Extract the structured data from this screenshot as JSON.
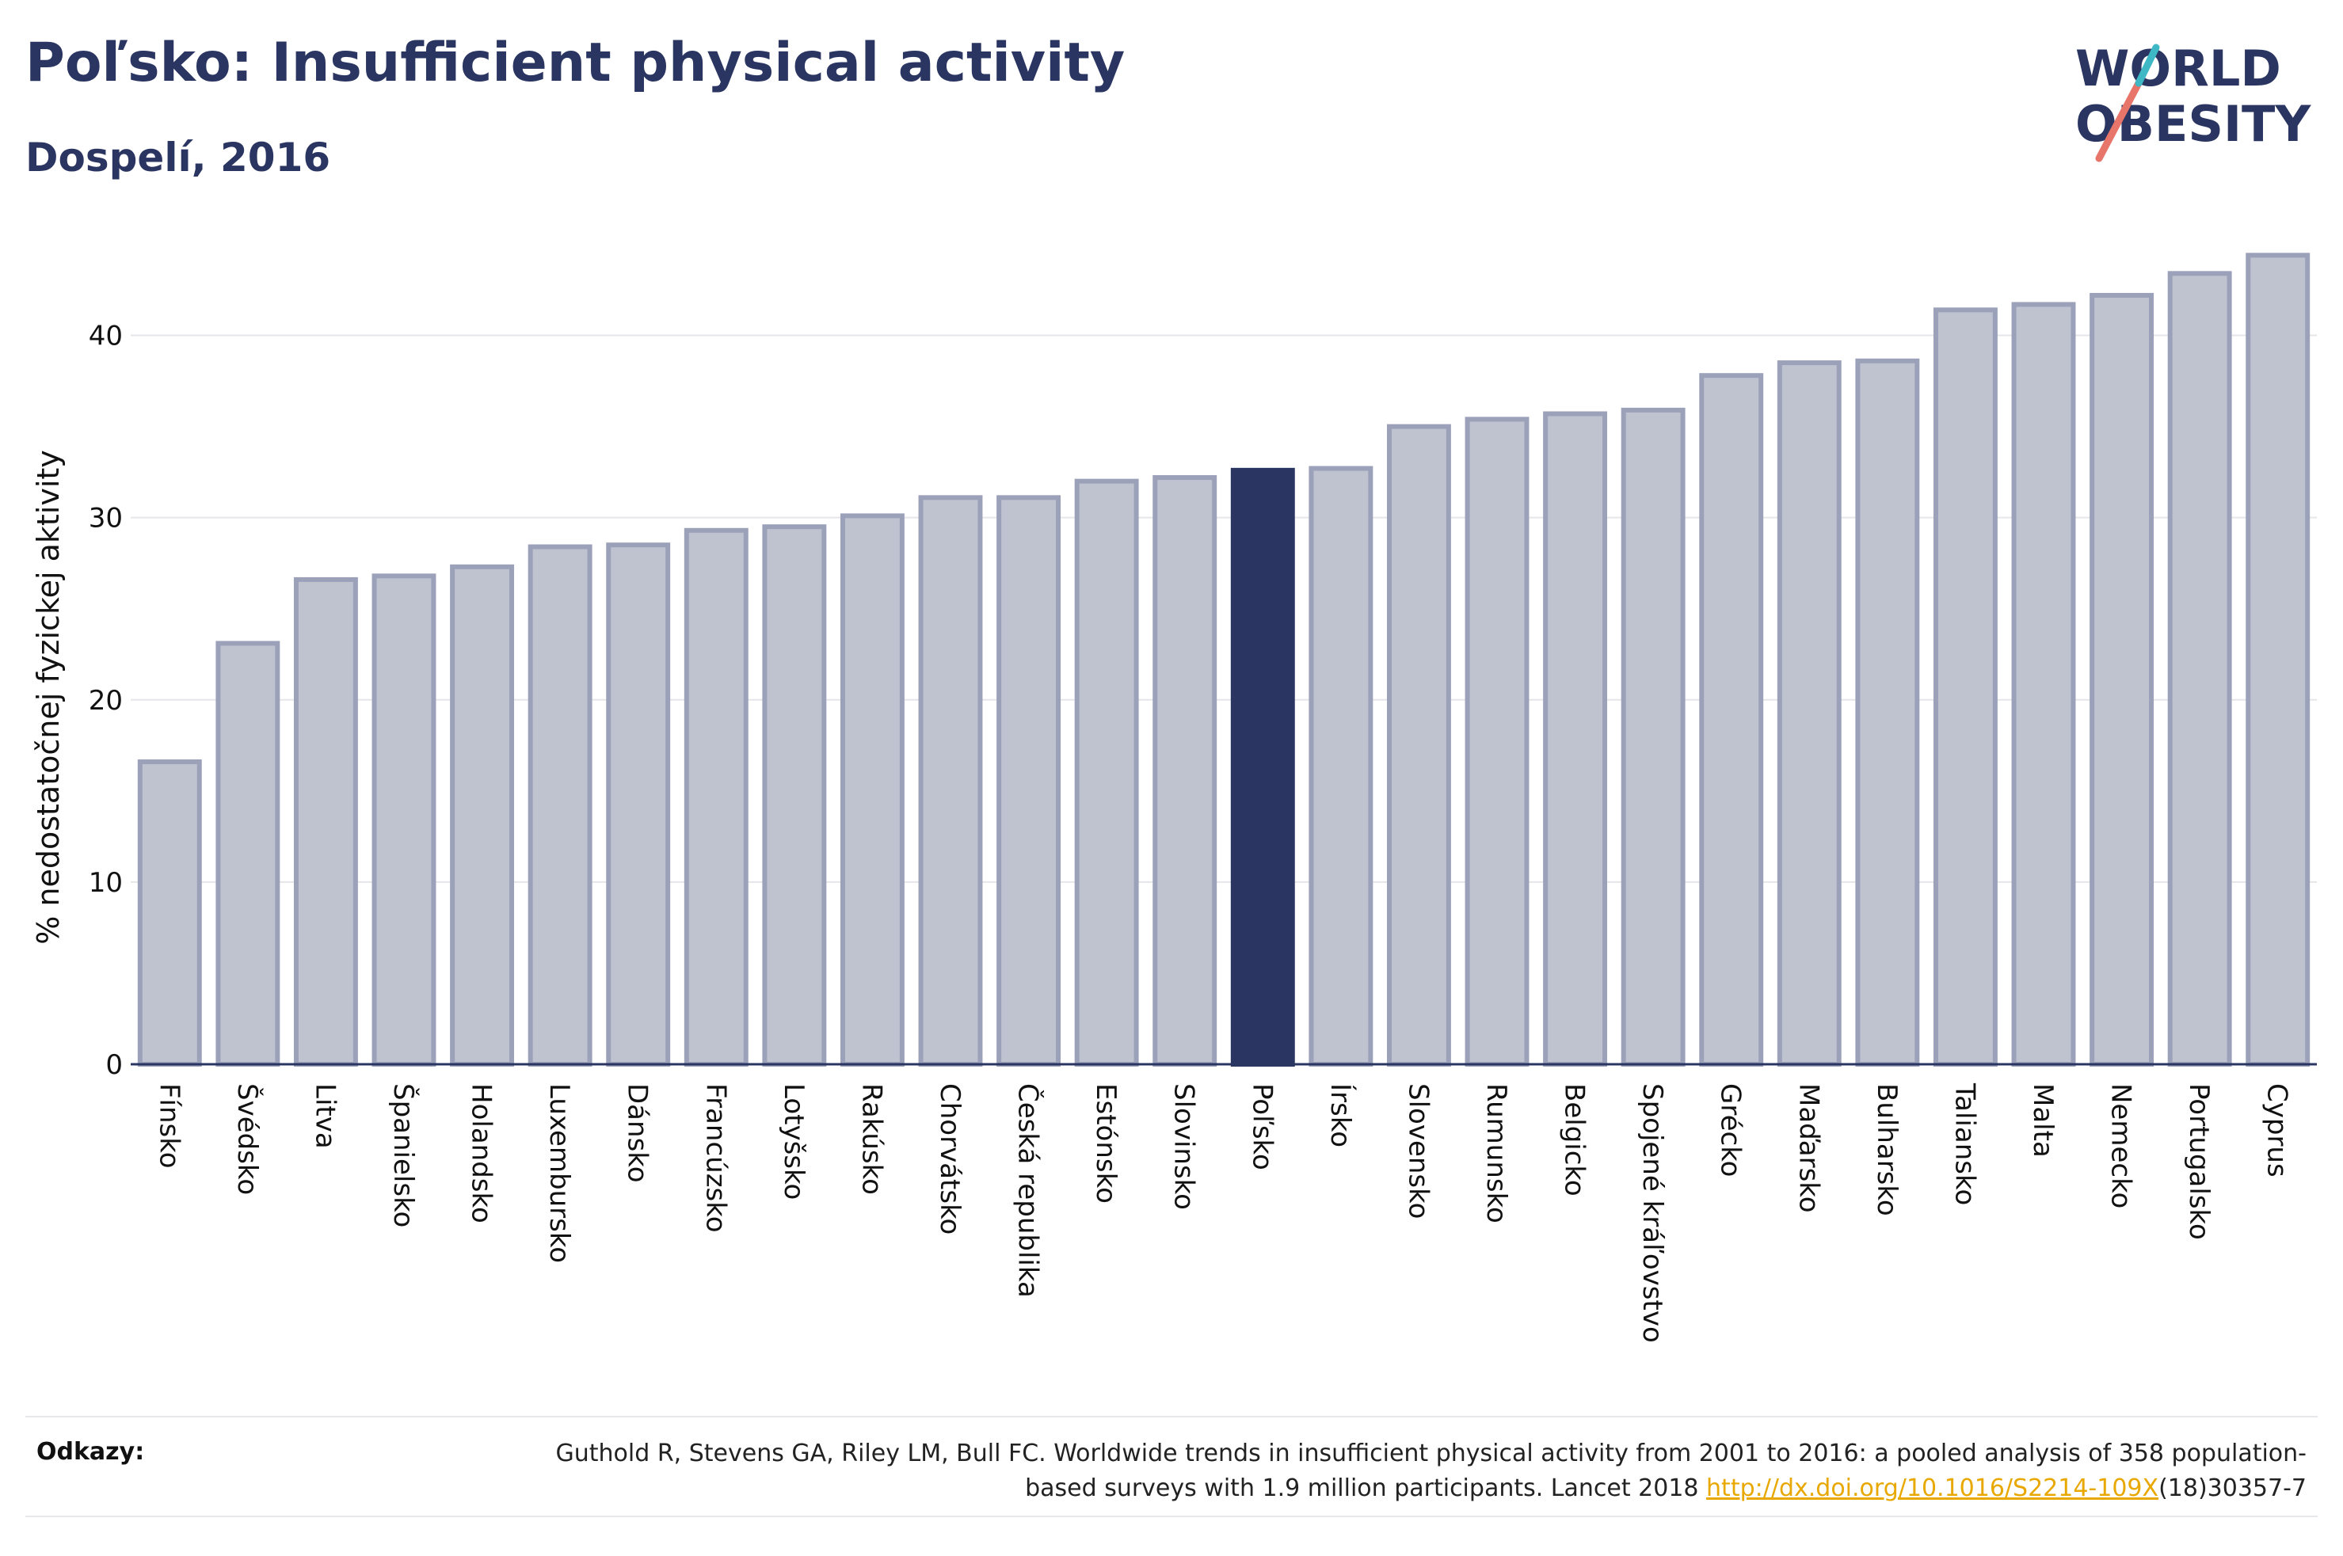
{
  "title": "Poľsko: Insufficient physical activity",
  "subtitle": "Dospelí, 2016",
  "logo": {
    "line1": "WORLD",
    "line2": "OBESITY",
    "accent_color": "#e8756a",
    "accent2_color": "#3fb8c5",
    "text_color": "#2a3561"
  },
  "references": {
    "label": "Odkazy:",
    "text_part1": "Guthold R, Stevens GA, Riley LM, Bull FC. Worldwide trends in insufficient physical activity from 2001 to 2016: a pooled analysis of 358 population-based surveys with 1.9 million participants. Lancet 2018 ",
    "link": "http://dx.doi.org/10.1016/S2214-109X",
    "text_part2": "(18)30357-7"
  },
  "colors": {
    "bar": "#bfc2cf",
    "bar_border": "#9ca1ba",
    "highlight": "#2a3561",
    "grid": "#e6e6ea",
    "axis": "#2a3561"
  },
  "chart_data": {
    "type": "bar",
    "title": "Poľsko: Insufficient physical activity",
    "subtitle": "Dospelí, 2016",
    "xlabel": "",
    "ylabel": "% nedostatočnej fyzickej aktivity",
    "ylim": [
      0,
      45.5
    ],
    "yticks": [
      0,
      10,
      20,
      30,
      40
    ],
    "grid": true,
    "highlight": "Poľsko",
    "categories": [
      "Fínsko",
      "Švédsko",
      "Litva",
      "Španielsko",
      "Holandsko",
      "Luxembursko",
      "Dánsko",
      "Francúzsko",
      "Lotyšsko",
      "Rakúsko",
      "Chorvátsko",
      "Česká republika",
      "Estónsko",
      "Slovinsko",
      "Poľsko",
      "Írsko",
      "Slovensko",
      "Rumunsko",
      "Belgicko",
      "Spojené kráľovstvo",
      "Grécko",
      "Maďarsko",
      "Bulharsko",
      "Taliansko",
      "Malta",
      "Nemecko",
      "Portugalsko",
      "Cyprus"
    ],
    "values": [
      16.6,
      23.1,
      26.6,
      26.8,
      27.3,
      28.4,
      28.5,
      29.3,
      29.5,
      30.1,
      31.1,
      31.1,
      32.0,
      32.2,
      32.6,
      32.7,
      35.0,
      35.4,
      35.7,
      35.9,
      37.8,
      38.5,
      38.6,
      41.4,
      41.7,
      42.2,
      43.4,
      44.4
    ]
  }
}
